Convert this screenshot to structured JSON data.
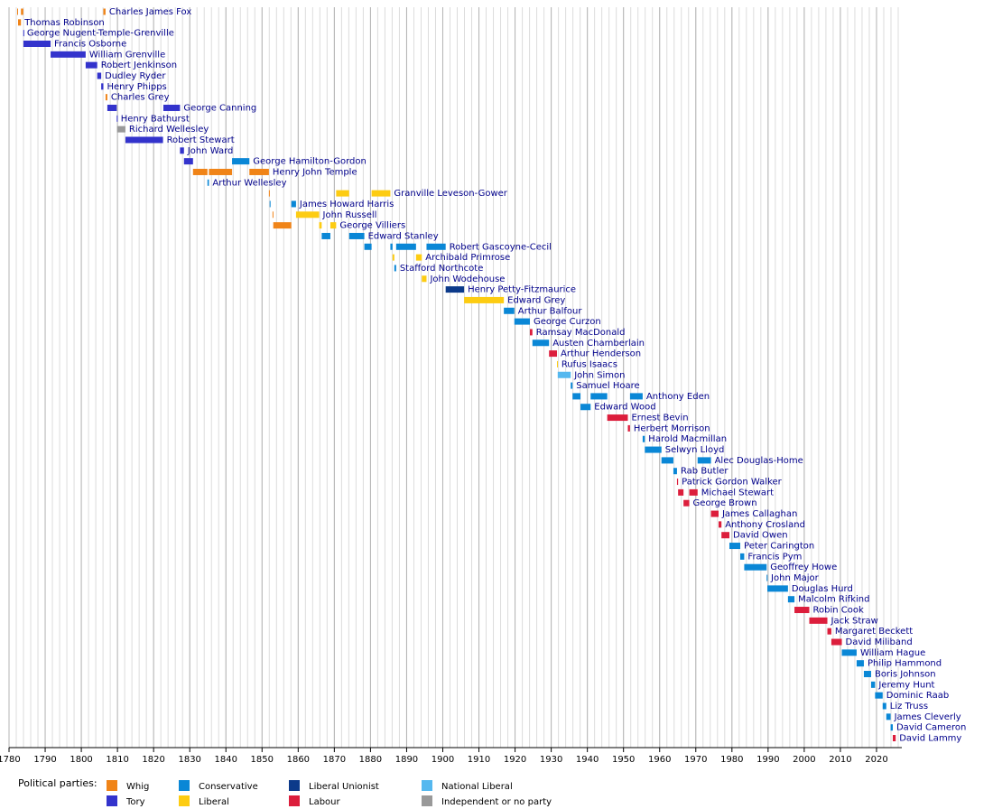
{
  "chart_data": {
    "type": "timeline",
    "xlim": [
      1780,
      2027
    ],
    "xticks": [
      1780,
      1790,
      1800,
      1810,
      1820,
      1830,
      1840,
      1850,
      1860,
      1870,
      1880,
      1890,
      1900,
      1910,
      1920,
      1930,
      1940,
      1950,
      1960,
      1970,
      1980,
      1990,
      2000,
      2010,
      2020
    ],
    "minor_grid_step": 2,
    "grid": true,
    "legend_title": "Political parties:",
    "parties": [
      {
        "name": "Whig",
        "color": "#f08418"
      },
      {
        "name": "Tory",
        "color": "#3333cc"
      },
      {
        "name": "Conservative",
        "color": "#0a87d6"
      },
      {
        "name": "Liberal",
        "color": "#fdcc12"
      },
      {
        "name": "Liberal Unionist",
        "color": "#0c3a8a"
      },
      {
        "name": "Labour",
        "color": "#dc1e3c"
      },
      {
        "name": "National Liberal",
        "color": "#55b8ef"
      },
      {
        "name": "Independent or no party",
        "color": "#999999"
      }
    ],
    "rows": [
      {
        "name": "Charles James Fox",
        "spans": [
          {
            "start": 1782.25,
            "end": 1782.5,
            "party": "Whig"
          },
          {
            "start": 1783.3,
            "end": 1783.95,
            "party": "Whig"
          },
          {
            "start": 1806.1,
            "end": 1806.7,
            "party": "Whig"
          }
        ]
      },
      {
        "name": "Thomas Robinson",
        "spans": [
          {
            "start": 1782.5,
            "end": 1783.3,
            "party": "Whig"
          }
        ]
      },
      {
        "name": "George Nugent-Temple-Grenville",
        "spans": [
          {
            "start": 1783.95,
            "end": 1783.97,
            "party": "Tory"
          }
        ]
      },
      {
        "name": "Francis Osborne",
        "spans": [
          {
            "start": 1783.97,
            "end": 1791.5,
            "party": "Tory"
          }
        ]
      },
      {
        "name": "William Grenville",
        "spans": [
          {
            "start": 1791.5,
            "end": 1801.2,
            "party": "Tory"
          }
        ]
      },
      {
        "name": "Robert Jenkinson",
        "spans": [
          {
            "start": 1801.2,
            "end": 1804.4,
            "party": "Tory"
          }
        ]
      },
      {
        "name": "Dudley Ryder",
        "spans": [
          {
            "start": 1804.4,
            "end": 1805.5,
            "party": "Tory"
          }
        ]
      },
      {
        "name": "Henry Phipps",
        "spans": [
          {
            "start": 1805.5,
            "end": 1806.1,
            "party": "Tory"
          }
        ]
      },
      {
        "name": "Charles Grey",
        "spans": [
          {
            "start": 1806.7,
            "end": 1807.2,
            "party": "Whig"
          }
        ]
      },
      {
        "name": "George Canning",
        "spans": [
          {
            "start": 1807.2,
            "end": 1809.8,
            "party": "Tory"
          },
          {
            "start": 1822.7,
            "end": 1827.3,
            "party": "Tory"
          }
        ]
      },
      {
        "name": "Henry Bathurst",
        "spans": [
          {
            "start": 1809.8,
            "end": 1809.9,
            "party": "Tory"
          }
        ]
      },
      {
        "name": "Richard Wellesley",
        "spans": [
          {
            "start": 1809.9,
            "end": 1812.2,
            "party": "Independent or no party"
          }
        ]
      },
      {
        "name": "Robert Stewart",
        "spans": [
          {
            "start": 1812.2,
            "end": 1822.6,
            "party": "Tory"
          }
        ]
      },
      {
        "name": "John Ward",
        "spans": [
          {
            "start": 1827.3,
            "end": 1828.4,
            "party": "Tory"
          }
        ]
      },
      {
        "name": "George Hamilton-Gordon",
        "spans": [
          {
            "start": 1828.4,
            "end": 1830.9,
            "party": "Tory"
          },
          {
            "start": 1841.7,
            "end": 1846.5,
            "party": "Conservative"
          }
        ]
      },
      {
        "name": "Henry John Temple",
        "spans": [
          {
            "start": 1830.9,
            "end": 1834.9,
            "party": "Whig"
          },
          {
            "start": 1835.3,
            "end": 1841.7,
            "party": "Whig"
          },
          {
            "start": 1846.5,
            "end": 1851.9,
            "party": "Whig"
          }
        ]
      },
      {
        "name": "Arthur Wellesley",
        "spans": [
          {
            "start": 1834.9,
            "end": 1835.3,
            "party": "Conservative"
          }
        ]
      },
      {
        "name": "Granville Leveson-Gower",
        "spans": [
          {
            "start": 1851.9,
            "end": 1852.1,
            "party": "Whig"
          },
          {
            "start": 1870.5,
            "end": 1874.1,
            "party": "Liberal"
          },
          {
            "start": 1880.3,
            "end": 1885.5,
            "party": "Liberal"
          }
        ]
      },
      {
        "name": "James Howard Harris",
        "spans": [
          {
            "start": 1852.1,
            "end": 1852.3,
            "party": "Conservative"
          },
          {
            "start": 1858.1,
            "end": 1859.4,
            "party": "Conservative"
          }
        ]
      },
      {
        "name": "John Russell",
        "spans": [
          {
            "start": 1852.9,
            "end": 1853.1,
            "party": "Whig"
          },
          {
            "start": 1859.4,
            "end": 1865.8,
            "party": "Liberal"
          }
        ]
      },
      {
        "name": "George Villiers",
        "spans": [
          {
            "start": 1853.1,
            "end": 1858.1,
            "party": "Whig"
          },
          {
            "start": 1865.8,
            "end": 1866.5,
            "party": "Liberal"
          },
          {
            "start": 1868.9,
            "end": 1870.5,
            "party": "Liberal"
          }
        ]
      },
      {
        "name": "Edward Stanley",
        "spans": [
          {
            "start": 1866.5,
            "end": 1868.9,
            "party": "Conservative"
          },
          {
            "start": 1874.1,
            "end": 1878.3,
            "party": "Conservative"
          }
        ]
      },
      {
        "name": "Robert Gascoyne-Cecil",
        "spans": [
          {
            "start": 1878.3,
            "end": 1880.3,
            "party": "Conservative"
          },
          {
            "start": 1885.5,
            "end": 1886.1,
            "party": "Conservative"
          },
          {
            "start": 1887.1,
            "end": 1892.6,
            "party": "Conservative"
          },
          {
            "start": 1895.5,
            "end": 1900.8,
            "party": "Conservative"
          }
        ]
      },
      {
        "name": "Archibald Primrose",
        "spans": [
          {
            "start": 1886.1,
            "end": 1886.6,
            "party": "Liberal"
          },
          {
            "start": 1892.6,
            "end": 1894.2,
            "party": "Liberal"
          }
        ]
      },
      {
        "name": "Stafford Northcote",
        "spans": [
          {
            "start": 1886.6,
            "end": 1887.1,
            "party": "Conservative"
          }
        ]
      },
      {
        "name": "John Wodehouse",
        "spans": [
          {
            "start": 1894.2,
            "end": 1895.5,
            "party": "Liberal"
          }
        ]
      },
      {
        "name": "Henry Petty-Fitzmaurice",
        "spans": [
          {
            "start": 1900.8,
            "end": 1905.9,
            "party": "Liberal Unionist"
          }
        ]
      },
      {
        "name": "Edward Grey",
        "spans": [
          {
            "start": 1905.9,
            "end": 1916.9,
            "party": "Liberal"
          }
        ]
      },
      {
        "name": "Arthur Balfour",
        "spans": [
          {
            "start": 1916.9,
            "end": 1919.8,
            "party": "Conservative"
          }
        ]
      },
      {
        "name": "George Curzon",
        "spans": [
          {
            "start": 1919.8,
            "end": 1924.1,
            "party": "Conservative"
          }
        ]
      },
      {
        "name": "Ramsay MacDonald",
        "spans": [
          {
            "start": 1924.1,
            "end": 1924.8,
            "party": "Labour"
          }
        ]
      },
      {
        "name": "Austen Chamberlain",
        "spans": [
          {
            "start": 1924.8,
            "end": 1929.4,
            "party": "Conservative"
          }
        ]
      },
      {
        "name": "Arthur Henderson",
        "spans": [
          {
            "start": 1929.4,
            "end": 1931.6,
            "party": "Labour"
          }
        ]
      },
      {
        "name": "Rufus Isaacs",
        "spans": [
          {
            "start": 1931.6,
            "end": 1931.8,
            "party": "Liberal"
          }
        ]
      },
      {
        "name": "John Simon",
        "spans": [
          {
            "start": 1931.8,
            "end": 1935.4,
            "party": "National Liberal"
          }
        ]
      },
      {
        "name": "Samuel Hoare",
        "spans": [
          {
            "start": 1935.4,
            "end": 1935.9,
            "party": "Conservative"
          }
        ]
      },
      {
        "name": "Anthony Eden",
        "spans": [
          {
            "start": 1935.9,
            "end": 1938.1,
            "party": "Conservative"
          },
          {
            "start": 1940.9,
            "end": 1945.5,
            "party": "Conservative"
          },
          {
            "start": 1951.8,
            "end": 1955.3,
            "party": "Conservative"
          }
        ]
      },
      {
        "name": "Edward Wood",
        "spans": [
          {
            "start": 1938.1,
            "end": 1940.9,
            "party": "Conservative"
          }
        ]
      },
      {
        "name": "Ernest Bevin",
        "spans": [
          {
            "start": 1945.5,
            "end": 1951.2,
            "party": "Labour"
          }
        ]
      },
      {
        "name": "Herbert Morrison",
        "spans": [
          {
            "start": 1951.2,
            "end": 1951.8,
            "party": "Labour"
          }
        ]
      },
      {
        "name": "Harold Macmillan",
        "spans": [
          {
            "start": 1955.3,
            "end": 1955.9,
            "party": "Conservative"
          }
        ]
      },
      {
        "name": "Selwyn Lloyd",
        "spans": [
          {
            "start": 1955.9,
            "end": 1960.5,
            "party": "Conservative"
          }
        ]
      },
      {
        "name": "Alec Douglas-Home",
        "spans": [
          {
            "start": 1960.5,
            "end": 1963.8,
            "party": "Conservative"
          },
          {
            "start": 1970.5,
            "end": 1974.2,
            "party": "Conservative"
          }
        ]
      },
      {
        "name": "Rab Butler",
        "spans": [
          {
            "start": 1963.8,
            "end": 1964.8,
            "party": "Conservative"
          }
        ]
      },
      {
        "name": "Patrick Gordon Walker",
        "spans": [
          {
            "start": 1964.8,
            "end": 1965.1,
            "party": "Labour"
          }
        ]
      },
      {
        "name": "Michael Stewart",
        "spans": [
          {
            "start": 1965.1,
            "end": 1966.6,
            "party": "Labour"
          },
          {
            "start": 1968.2,
            "end": 1970.5,
            "party": "Labour"
          }
        ]
      },
      {
        "name": "George Brown",
        "spans": [
          {
            "start": 1966.6,
            "end": 1968.2,
            "party": "Labour"
          }
        ]
      },
      {
        "name": "James Callaghan",
        "spans": [
          {
            "start": 1974.2,
            "end": 1976.3,
            "party": "Labour"
          }
        ]
      },
      {
        "name": "Anthony Crosland",
        "spans": [
          {
            "start": 1976.3,
            "end": 1977.1,
            "party": "Labour"
          }
        ]
      },
      {
        "name": "David Owen",
        "spans": [
          {
            "start": 1977.1,
            "end": 1979.3,
            "party": "Labour"
          }
        ]
      },
      {
        "name": "Peter Carington",
        "spans": [
          {
            "start": 1979.3,
            "end": 1982.3,
            "party": "Conservative"
          }
        ]
      },
      {
        "name": "Francis Pym",
        "spans": [
          {
            "start": 1982.3,
            "end": 1983.4,
            "party": "Conservative"
          }
        ]
      },
      {
        "name": "Geoffrey Howe",
        "spans": [
          {
            "start": 1983.4,
            "end": 1989.6,
            "party": "Conservative"
          }
        ]
      },
      {
        "name": "John Major",
        "spans": [
          {
            "start": 1989.6,
            "end": 1989.8,
            "party": "Conservative"
          }
        ]
      },
      {
        "name": "Douglas Hurd",
        "spans": [
          {
            "start": 1989.8,
            "end": 1995.5,
            "party": "Conservative"
          }
        ]
      },
      {
        "name": "Malcolm Rifkind",
        "spans": [
          {
            "start": 1995.5,
            "end": 1997.3,
            "party": "Conservative"
          }
        ]
      },
      {
        "name": "Robin Cook",
        "spans": [
          {
            "start": 1997.3,
            "end": 2001.4,
            "party": "Labour"
          }
        ]
      },
      {
        "name": "Jack Straw",
        "spans": [
          {
            "start": 2001.4,
            "end": 2006.4,
            "party": "Labour"
          }
        ]
      },
      {
        "name": "Margaret Beckett",
        "spans": [
          {
            "start": 2006.4,
            "end": 2007.5,
            "party": "Labour"
          }
        ]
      },
      {
        "name": "David Miliband",
        "spans": [
          {
            "start": 2007.5,
            "end": 2010.4,
            "party": "Labour"
          }
        ]
      },
      {
        "name": "William Hague",
        "spans": [
          {
            "start": 2010.4,
            "end": 2014.5,
            "party": "Conservative"
          }
        ]
      },
      {
        "name": "Philip Hammond",
        "spans": [
          {
            "start": 2014.5,
            "end": 2016.5,
            "party": "Conservative"
          }
        ]
      },
      {
        "name": "Boris Johnson",
        "spans": [
          {
            "start": 2016.5,
            "end": 2018.5,
            "party": "Conservative"
          }
        ]
      },
      {
        "name": "Jeremy Hunt",
        "spans": [
          {
            "start": 2018.5,
            "end": 2019.6,
            "party": "Conservative"
          }
        ]
      },
      {
        "name": "Dominic Raab",
        "spans": [
          {
            "start": 2019.6,
            "end": 2021.7,
            "party": "Conservative"
          }
        ]
      },
      {
        "name": "Liz Truss",
        "spans": [
          {
            "start": 2021.7,
            "end": 2022.7,
            "party": "Conservative"
          }
        ]
      },
      {
        "name": "James Cleverly",
        "spans": [
          {
            "start": 2022.7,
            "end": 2023.9,
            "party": "Conservative"
          }
        ]
      },
      {
        "name": "David Cameron",
        "spans": [
          {
            "start": 2023.9,
            "end": 2024.5,
            "party": "Conservative"
          }
        ]
      },
      {
        "name": "David Lammy",
        "spans": [
          {
            "start": 2024.5,
            "end": 2025.3,
            "party": "Labour"
          }
        ]
      }
    ]
  }
}
